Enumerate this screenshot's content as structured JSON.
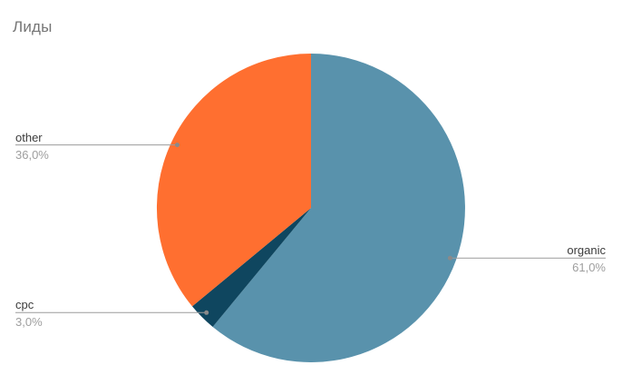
{
  "chart_data": {
    "type": "pie",
    "title": "Лиды",
    "unit": "percent",
    "decimal_separator": ",",
    "start_angle_deg": 0,
    "direction": "clockwise",
    "legend_position": "none",
    "background_color": "#ffffff",
    "leader_line_color": "#9b9b9b",
    "leader_dot_color": "#8a8a8a",
    "title_color": "#757575",
    "label_text_color": "#3c3c3c",
    "percent_text_color": "#9e9e9e",
    "slices": [
      {
        "label": "organic",
        "value": 61.0,
        "display_percent": "61,0%",
        "color": "#5992AC",
        "label_side": "right"
      },
      {
        "label": "cpc",
        "value": 3.0,
        "display_percent": "3,0%",
        "color": "#0F465F",
        "label_side": "left"
      },
      {
        "label": "other",
        "value": 36.0,
        "display_percent": "36,0%",
        "color": "#FF6F30",
        "label_side": "left"
      }
    ]
  }
}
